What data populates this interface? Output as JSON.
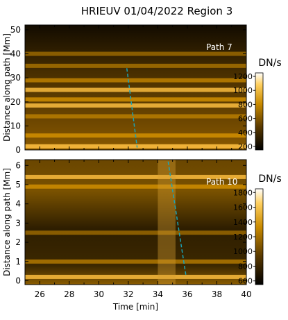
{
  "title": "HRIEUV 01/04/2022   Region 3",
  "chart_data": [
    {
      "type": "heatmap",
      "annotation": "Path  7",
      "ylabel": "Distance along path [Mm]",
      "xlim": [
        25,
        40
      ],
      "ylim": [
        0,
        52
      ],
      "yticks": [
        0,
        10,
        20,
        30,
        40,
        50
      ],
      "colorbar": {
        "label": "DN/s",
        "range": [
          150,
          1250
        ],
        "ticks": [
          200,
          400,
          600,
          800,
          1000,
          1200
        ]
      },
      "fit_line": {
        "x": [
          31.9,
          32.6
        ],
        "y": [
          34,
          1
        ],
        "color": "#1aa3b8"
      },
      "bright_bands": [
        {
          "y": 1.5,
          "rel": 0.95
        },
        {
          "y": 6,
          "rel": 0.8
        },
        {
          "y": 18.5,
          "rel": 0.9
        },
        {
          "y": 21,
          "rel": 0.8
        },
        {
          "y": 25,
          "rel": 0.85
        },
        {
          "y": 29,
          "rel": 0.6
        },
        {
          "y": 14,
          "rel": 0.45
        },
        {
          "y": 35,
          "rel": 0.4
        },
        {
          "y": 40,
          "rel": 0.3
        }
      ]
    },
    {
      "type": "heatmap",
      "annotation": "Path 10",
      "ylabel": "Distance along path [Mm]",
      "xlabel": "Time [min]",
      "xlim": [
        25,
        40
      ],
      "ylim": [
        -0.2,
        6.3
      ],
      "yticks": [
        0,
        1,
        2,
        3,
        4,
        5,
        6
      ],
      "xticks": [
        26,
        28,
        30,
        32,
        34,
        36,
        38,
        40
      ],
      "colorbar": {
        "label": "DN/s",
        "range": [
          550,
          1850
        ],
        "ticks": [
          600,
          800,
          1000,
          1200,
          1400,
          1600,
          1800
        ]
      },
      "fit_line": {
        "x": [
          34.7,
          35.9
        ],
        "y": [
          6.2,
          0.3
        ],
        "color": "#1aa3b8"
      },
      "bright_bands": [
        {
          "y": 5.4,
          "rel": 0.85
        },
        {
          "y": 4.9,
          "rel": 0.75
        },
        {
          "y": 0.2,
          "rel": 0.85
        },
        {
          "y": 1.0,
          "rel": 0.5
        },
        {
          "y": 2.5,
          "rel": 0.3
        }
      ],
      "bright_column": {
        "x": [
          34.0,
          35.2
        ],
        "rel": 0.65
      }
    }
  ]
}
